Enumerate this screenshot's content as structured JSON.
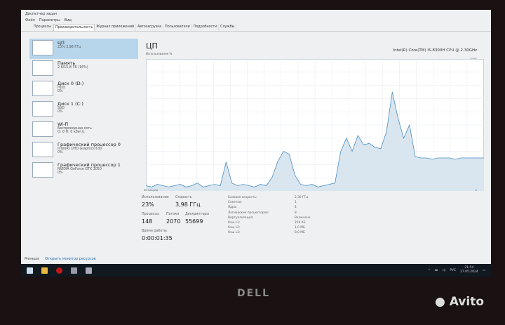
{
  "window": {
    "title": "Диспетчер задач",
    "menu": [
      "Файл",
      "Параметры",
      "Вид"
    ],
    "tabs": [
      "Процессы",
      "Производительность",
      "Журнал приложений",
      "Автозагрузка",
      "Пользователи",
      "Подробности",
      "Службы"
    ],
    "active_tab": 1
  },
  "sidebar": {
    "items": [
      {
        "name": "ЦП",
        "line1": "23% 3,98 ГГц",
        "line2": ""
      },
      {
        "name": "Память",
        "line1": "2,6/15,8 ГБ (16%)",
        "line2": ""
      },
      {
        "name": "Диск 0 (D:)",
        "line1": "HDD",
        "line2": "0%"
      },
      {
        "name": "Диск 1 (C:)",
        "line1": "SSD",
        "line2": "0%"
      },
      {
        "name": "Wi-Fi",
        "line1": "Беспроводная сеть",
        "line2": "О: 0 П: 0 кбит/с"
      },
      {
        "name": "Графический процессор 0",
        "line1": "Intel(R) UHD Graphics 630",
        "line2": "0%"
      },
      {
        "name": "Графический процессор 1",
        "line1": "NVIDIA GeForce GTX 1050",
        "line2": "0%"
      }
    ]
  },
  "main": {
    "title": "ЦП",
    "subtitle": "Использование %",
    "cpu_model": "Intel(R) Core(TM) i5-8300H CPU @ 2.30GHz",
    "max_label": "100%",
    "time_label": "60 секунд",
    "min_label": "0",
    "cpu_history": [
      4,
      3,
      5,
      4,
      3,
      4,
      5,
      3,
      4,
      6,
      3,
      4,
      5,
      4,
      22,
      6,
      4,
      5,
      4,
      3,
      5,
      4,
      10,
      22,
      30,
      28,
      12,
      5,
      4,
      5,
      3,
      4,
      5,
      6,
      30,
      40,
      30,
      42,
      35,
      36,
      33,
      32,
      45,
      75,
      55,
      40,
      50,
      26,
      25,
      25,
      24,
      25,
      25,
      25,
      24,
      25,
      25,
      25,
      25,
      25
    ],
    "stats": {
      "usage_label": "Использование",
      "usage": "23%",
      "speed_label": "Скорость",
      "speed": "3,98 ГГц",
      "proc_label": "Процессы",
      "proc": "148",
      "threads_label": "Потоки",
      "threads": "2070",
      "handles_label": "Дескрипторы",
      "handles": "55699",
      "uptime_label": "Время работы",
      "uptime": "0:00:01:35"
    },
    "specs": [
      [
        "Базовая скорость:",
        "2,30 ГГц"
      ],
      [
        "Сокетов:",
        "1"
      ],
      [
        "Ядра:",
        "4"
      ],
      [
        "Логических процессоров:",
        "8"
      ],
      [
        "Виртуализация:",
        "Включено"
      ],
      [
        "Кэш L1:",
        "256 КБ"
      ],
      [
        "Кэш L2:",
        "1,0 МБ"
      ],
      [
        "Кэш L3:",
        "8,0 МБ"
      ]
    ]
  },
  "footer": {
    "less": "Меньше",
    "monitor": "Открыть монитор ресурсов"
  },
  "tray": {
    "lang": "РУС",
    "time": "21:54",
    "date": "27.05.2024"
  },
  "bezel": {
    "brand": "DELL",
    "watermark": "Avito"
  },
  "colors": {
    "accent": "#b7d6ec",
    "graph_line": "#4a8cc0",
    "graph_fill": "#d9e6f0"
  }
}
